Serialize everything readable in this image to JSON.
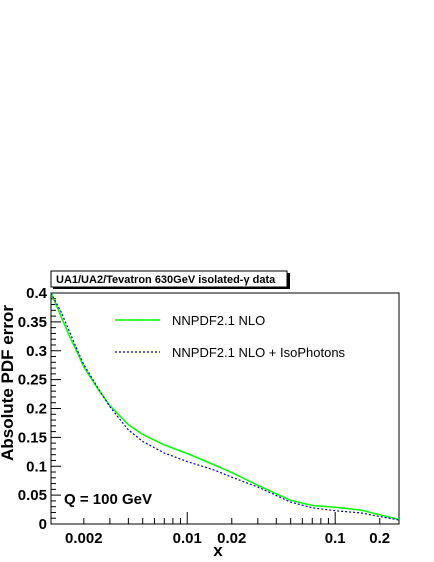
{
  "chart_data": {
    "type": "line",
    "title": "UA1/UA2/Tevatron 630GeV isolated-γ data",
    "xlabel": "x",
    "ylabel": "Absolute PDF error",
    "xscale": "log",
    "xlim": [
      0.0012,
      0.27
    ],
    "ylim": [
      0,
      0.4
    ],
    "x_tick_labels": [
      "0.002",
      "0.01",
      "0.02",
      "0.1",
      "0.2"
    ],
    "y_tick_labels": [
      "0",
      "0.05",
      "0.1",
      "0.15",
      "0.2",
      "0.25",
      "0.3",
      "0.35",
      "0.4"
    ],
    "annotation": "Q = 100 GeV",
    "legend_position": "top-center",
    "grid": false,
    "series": [
      {
        "name": "NNPDF2.1 NLO",
        "color": "#00ff00",
        "style": "solid",
        "x": [
          0.0012,
          0.0014,
          0.0016,
          0.0018,
          0.002,
          0.0025,
          0.003,
          0.004,
          0.005,
          0.007,
          0.01,
          0.015,
          0.02,
          0.03,
          0.05,
          0.07,
          0.1,
          0.15,
          0.2,
          0.27
        ],
        "y": [
          0.405,
          0.36,
          0.325,
          0.298,
          0.272,
          0.233,
          0.205,
          0.172,
          0.155,
          0.137,
          0.122,
          0.103,
          0.089,
          0.067,
          0.041,
          0.032,
          0.029,
          0.024,
          0.016,
          0.008
        ]
      },
      {
        "name": "NNPDF2.1 NLO + IsoPhotons",
        "color": "#0000cc",
        "style": "dashed",
        "x": [
          0.0012,
          0.0014,
          0.0016,
          0.0018,
          0.002,
          0.0025,
          0.003,
          0.004,
          0.005,
          0.007,
          0.01,
          0.015,
          0.02,
          0.03,
          0.05,
          0.07,
          0.1,
          0.15,
          0.2,
          0.27
        ],
        "y": [
          0.408,
          0.368,
          0.333,
          0.302,
          0.276,
          0.235,
          0.203,
          0.163,
          0.143,
          0.123,
          0.108,
          0.094,
          0.081,
          0.064,
          0.038,
          0.028,
          0.023,
          0.019,
          0.013,
          0.007
        ]
      }
    ]
  }
}
